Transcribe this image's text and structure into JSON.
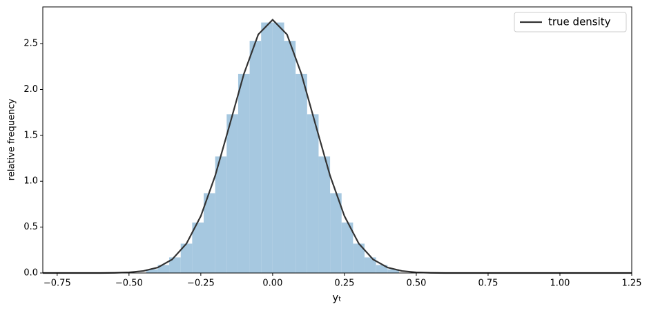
{
  "chart_data": {
    "type": "histogram",
    "xlabel": "yₜ",
    "ylabel": "relative frequency",
    "bins": [
      -0.44,
      -0.4,
      -0.36,
      -0.32,
      -0.28,
      -0.24,
      -0.2,
      -0.16,
      -0.12,
      -0.08,
      -0.04,
      0.0,
      0.04,
      0.08,
      0.12,
      0.16,
      0.2,
      0.24,
      0.28,
      0.32,
      0.36,
      0.4,
      0.44
    ],
    "values": [
      0.04,
      0.087,
      0.17,
      0.32,
      0.55,
      0.87,
      1.27,
      1.73,
      2.17,
      2.53,
      2.73,
      2.73,
      2.53,
      2.17,
      1.73,
      1.27,
      0.87,
      0.55,
      0.32,
      0.17,
      0.087,
      0.04
    ],
    "color": "#a6c8e0",
    "density": {
      "name": "true density",
      "color": "#333333",
      "x": [
        -0.8,
        -0.75,
        -0.7,
        -0.65,
        -0.6,
        -0.55,
        -0.5,
        -0.45,
        -0.4,
        -0.35,
        -0.3,
        -0.25,
        -0.2,
        -0.15,
        -0.1,
        -0.05,
        0.0,
        0.05,
        0.1,
        0.15,
        0.2,
        0.25,
        0.3,
        0.35,
        0.4,
        0.45,
        0.5,
        0.55,
        0.6,
        0.65,
        0.7,
        0.75,
        0.8,
        0.85,
        0.9,
        0.95,
        1.0,
        1.05,
        1.1,
        1.15,
        1.2,
        1.25
      ],
      "values": [
        0,
        0,
        0,
        0,
        0,
        0.002,
        0.007,
        0.022,
        0.06,
        0.147,
        0.32,
        0.62,
        1.06,
        1.61,
        2.17,
        2.6,
        2.76,
        2.6,
        2.17,
        1.61,
        1.06,
        0.62,
        0.32,
        0.147,
        0.06,
        0.022,
        0.007,
        0.002,
        0,
        0,
        0,
        0,
        0,
        0,
        0,
        0,
        0,
        0,
        0,
        0,
        0,
        0
      ]
    },
    "xlim": [
      -0.8,
      1.25
    ],
    "ylim": [
      0,
      2.9
    ],
    "xticks": [
      {
        "value": -0.75,
        "label": "−0.75"
      },
      {
        "value": -0.5,
        "label": "−0.50"
      },
      {
        "value": -0.25,
        "label": "−0.25"
      },
      {
        "value": 0,
        "label": "0.00"
      },
      0.25,
      {
        "value": 0.5,
        "label": "0.50"
      },
      0.75,
      {
        "value": 1,
        "label": "1.00"
      },
      1.25
    ],
    "yticks": [
      {
        "value": 0,
        "label": "0.0"
      },
      0.5,
      {
        "value": 1,
        "label": "1.0"
      },
      1.5,
      {
        "value": 2,
        "label": "2.0"
      },
      2.5
    ],
    "legend": "upper right"
  }
}
